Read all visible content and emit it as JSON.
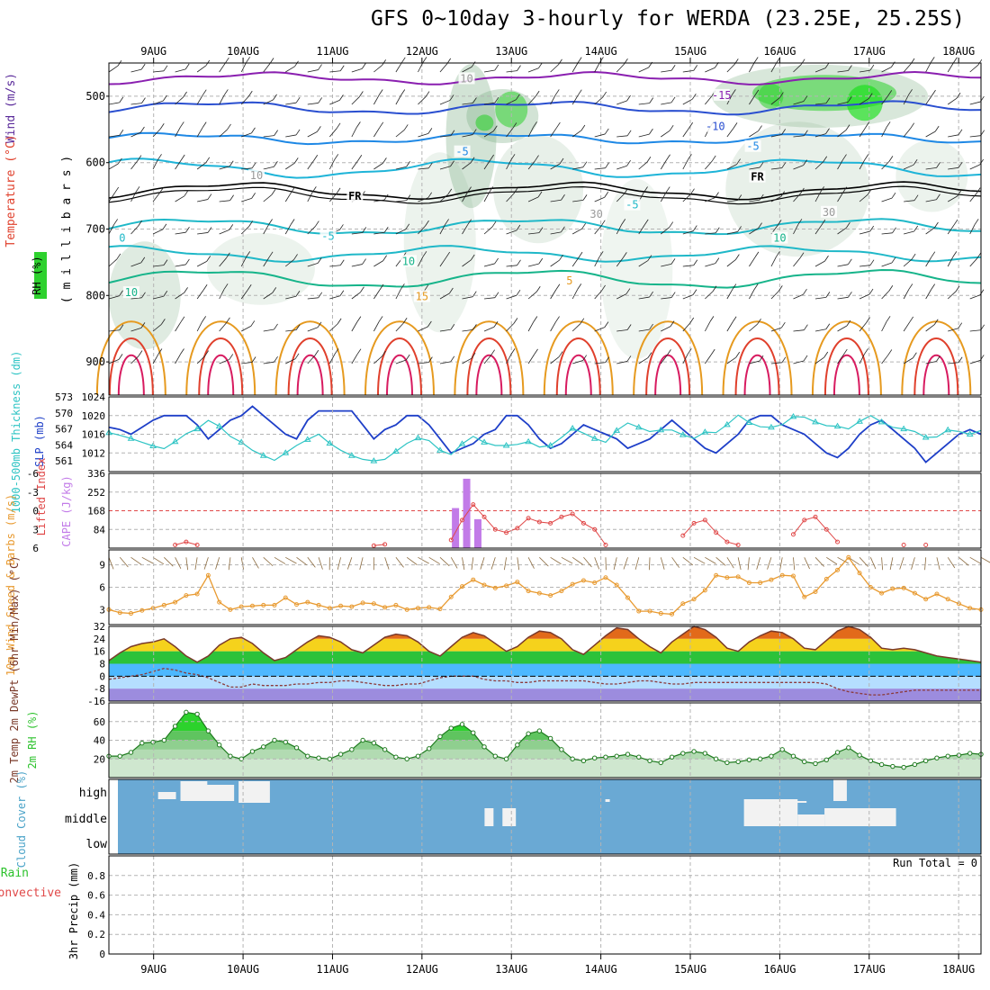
{
  "title": "GFS 0~10day 3-hourly for WERDA (23.25E, 25.25S)",
  "colors": {
    "temp_orange": "#e69a1f",
    "temp_red": "#e0402c",
    "temp_purple": "#8a1fb0",
    "wind_blue": "#2a4fd0",
    "cyan": "#1fb8c8",
    "teal": "#16b48a",
    "rh_green": "#2cd22c",
    "slp_blue": "#1e3fc8",
    "thickness_cyan": "#2ec4c4",
    "cape_purple": "#c27be8",
    "lifted_red": "#e04848",
    "wind10_orange": "#e89a30",
    "cloud_blue": "#6aa9d4",
    "grid": "#b4b4b4"
  },
  "axes": {
    "date_labels": [
      "9AUG",
      "10AUG",
      "11AUG",
      "12AUG",
      "13AUG",
      "14AUG",
      "15AUG",
      "16AUG",
      "17AUG",
      "18AUG"
    ],
    "day_start": 8.5,
    "day_end": 18.25
  },
  "panels": {
    "upper": {
      "ylabel_wind": "Wind (m/s)",
      "ylabel_temp": "Temperature (°C)",
      "ylabel_rh": "RH (%)",
      "ylabel_mb": "( m i l l i b a r s )",
      "yticks": [
        "500",
        "600",
        "700",
        "800",
        "900"
      ],
      "contour_labels": [
        {
          "text": "-15",
          "day": 15.35,
          "mb": 500,
          "color": "#8a1fb0"
        },
        {
          "text": "-10",
          "day": 15.28,
          "mb": 547,
          "color": "#2a4fd0"
        },
        {
          "text": "-5",
          "day": 12.45,
          "mb": 585,
          "color": "#1e88e5"
        },
        {
          "text": "-5",
          "day": 15.7,
          "mb": 577,
          "color": "#1e88e5"
        },
        {
          "text": "FR",
          "day": 11.25,
          "mb": 652,
          "color": "#000000"
        },
        {
          "text": "FR",
          "day": 15.75,
          "mb": 623,
          "color": "#000000"
        },
        {
          "text": "-5",
          "day": 14.35,
          "mb": 665,
          "color": "#1fb8c8"
        },
        {
          "text": "-5",
          "day": 10.95,
          "mb": 712,
          "color": "#1fb8c8"
        },
        {
          "text": "0",
          "day": 8.65,
          "mb": 715,
          "color": "#1fb8c8"
        },
        {
          "text": "10",
          "day": 16.0,
          "mb": 715,
          "color": "#16b48a"
        },
        {
          "text": "10",
          "day": 11.85,
          "mb": 750,
          "color": "#16b48a"
        },
        {
          "text": "10",
          "day": 8.75,
          "mb": 797,
          "color": "#16b48a"
        },
        {
          "text": "5",
          "day": 13.65,
          "mb": 779,
          "color": "#e69a1f"
        },
        {
          "text": "15",
          "day": 12.0,
          "mb": 803,
          "color": "#e69a1f"
        },
        {
          "text": "10",
          "day": 12.5,
          "mb": 475,
          "color": "#9a9a9a"
        },
        {
          "text": "10",
          "day": 10.15,
          "mb": 621,
          "color": "#9a9a9a"
        },
        {
          "text": "30",
          "day": 13.95,
          "mb": 679,
          "color": "#9a9a9a"
        },
        {
          "text": "30",
          "day": 16.55,
          "mb": 676,
          "color": "#9a9a9a"
        }
      ]
    },
    "slp": {
      "ylabel_slp": "SLP (mb)",
      "ylabel_thk": "1000-500mb Thickness (dm)",
      "slp_ticks": [
        "1024",
        "1020",
        "1016",
        "1012"
      ],
      "thk_ticks": [
        "573",
        "570",
        "567",
        "564",
        "561"
      ],
      "slp": [
        1017.5,
        1017,
        1016,
        1017.5,
        1019,
        1020,
        1020,
        1020,
        1018,
        1015,
        1017,
        1019,
        1020,
        1022,
        1020,
        1018,
        1016,
        1015,
        1019,
        1021,
        1021,
        1021,
        1021,
        1018,
        1015,
        1017,
        1018,
        1020,
        1020,
        1018,
        1015,
        1012,
        1013,
        1014,
        1016,
        1017,
        1020,
        1020,
        1018,
        1015,
        1013,
        1014,
        1016,
        1018,
        1017,
        1016,
        1015,
        1013,
        1014,
        1015,
        1017,
        1019,
        1017,
        1015,
        1013,
        1012,
        1014,
        1016,
        1019,
        1020,
        1020,
        1018,
        1017,
        1016,
        1014,
        1012,
        1011,
        1013,
        1016,
        1018,
        1019,
        1017,
        1015,
        1013,
        1010,
        1012,
        1014,
        1016,
        1017,
        1016
      ],
      "thk": [
        566.3,
        565.8,
        565.2,
        564.5,
        563.8,
        563.3,
        564.6,
        566.1,
        567.0,
        568.6,
        567.5,
        565.6,
        564.5,
        563.0,
        562.0,
        561.1,
        562.5,
        563.9,
        565.0,
        566.0,
        564.3,
        563.0,
        562.0,
        561.3,
        561.0,
        561.3,
        562.8,
        564.3,
        565.3,
        564.8,
        563.0,
        562.2,
        564.2,
        565.6,
        564.5,
        563.9,
        563.9,
        564.1,
        564.6,
        563.6,
        563.9,
        565.4,
        567.1,
        566.2,
        565.2,
        564.5,
        566.7,
        568.1,
        567.3,
        566.5,
        566.8,
        566.8,
        565.9,
        565.2,
        566.4,
        566.3,
        567.8,
        569.6,
        568.2,
        567.4,
        567.3,
        567.8,
        569.3,
        569.2,
        568.3,
        567.6,
        567.5,
        567.0,
        568.4,
        569.5,
        568.3,
        567.3,
        567.0,
        566.5,
        565.4,
        565.5,
        566.8,
        566.5,
        566.0,
        566.7
      ]
    },
    "cape": {
      "ylabel_li": "Lifted Index",
      "ylabel_cape": "CAPE (J/kg)",
      "li_ticks": [
        "-6",
        "-3",
        "0",
        "3",
        "6"
      ],
      "cape_ticks": [
        "336",
        "252",
        "168",
        "84"
      ],
      "cape_bars": [
        {
          "day": 12.375,
          "value": 180
        },
        {
          "day": 12.5,
          "value": 312
        },
        {
          "day": 12.625,
          "value": 130
        }
      ],
      "li": [
        null,
        null,
        null,
        null,
        null,
        null,
        5.5,
        5.0,
        5.5,
        null,
        null,
        null,
        null,
        null,
        null,
        null,
        null,
        null,
        null,
        null,
        null,
        null,
        null,
        null,
        5.6,
        5.4,
        null,
        null,
        null,
        null,
        null,
        4.7,
        1.5,
        -1.0,
        1.0,
        3.0,
        3.5,
        2.8,
        1.2,
        1.8,
        2.0,
        1.0,
        0.5,
        2.0,
        3.0,
        5.5,
        null,
        null,
        null,
        null,
        null,
        null,
        4.0,
        2.0,
        1.5,
        3.5,
        5.0,
        5.5,
        null,
        null,
        null,
        null,
        3.8,
        1.5,
        1.0,
        3.0,
        5.0,
        null,
        null,
        null,
        null,
        null,
        5.5,
        null,
        5.5,
        null,
        null,
        null,
        null,
        null
      ]
    },
    "wind10": {
      "ylabel": "10m Wind Speed & Barbs (m/s)",
      "yticks": [
        "9",
        "6",
        "3"
      ],
      "speed": [
        3.0,
        2.6,
        2.5,
        2.9,
        3.2,
        3.6,
        4.0,
        4.9,
        5.1,
        7.6,
        4.0,
        3.0,
        3.4,
        3.5,
        3.6,
        3.6,
        4.6,
        3.7,
        4.0,
        3.6,
        3.2,
        3.5,
        3.4,
        3.9,
        3.8,
        3.3,
        3.6,
        3.0,
        3.2,
        3.3,
        3.1,
        4.7,
        6.1,
        7.0,
        6.3,
        5.9,
        6.2,
        6.7,
        5.5,
        5.2,
        4.9,
        5.5,
        6.4,
        6.9,
        6.6,
        7.3,
        6.3,
        4.6,
        2.8,
        2.8,
        2.5,
        2.4,
        3.8,
        4.4,
        5.6,
        7.6,
        7.3,
        7.4,
        6.6,
        6.6,
        7.0,
        7.6,
        7.5,
        4.7,
        5.4,
        7.1,
        8.3,
        10.0,
        7.9,
        6.0,
        5.2,
        5.8,
        5.9,
        5.2,
        4.4,
        5.1,
        4.4,
        3.8,
        3.2,
        3.0
      ]
    },
    "temp2m": {
      "ylabel": "2m Temp 2m DewPt (6hr Min/Max) (°C)",
      "yticks": [
        "32",
        "24",
        "16",
        "8",
        "0",
        "-8",
        "-16"
      ],
      "temp": [
        10,
        15,
        19,
        21,
        22,
        24,
        19,
        13,
        9,
        13,
        20,
        24,
        25,
        21,
        15,
        10,
        12,
        17,
        22,
        26,
        25,
        22,
        17,
        15,
        20,
        25,
        27,
        26,
        22,
        16,
        13,
        19,
        25,
        28,
        26,
        21,
        16,
        19,
        25,
        29,
        28,
        24,
        17,
        14,
        20,
        26,
        31,
        30,
        24,
        19,
        15,
        22,
        27,
        32,
        30,
        25,
        18,
        16,
        22,
        26,
        29,
        28,
        24,
        18,
        17,
        23,
        29,
        32,
        30,
        25,
        18,
        17,
        18,
        17,
        15,
        13,
        12,
        11,
        10,
        9
      ],
      "dewpt": [
        -2,
        -1,
        0,
        1,
        3,
        5,
        4,
        2,
        1,
        -1,
        -4,
        -7,
        -7,
        -5,
        -6,
        -6,
        -6,
        -5,
        -5,
        -4,
        -4,
        -3,
        -3,
        -4,
        -5,
        -6,
        -6,
        -5,
        -5,
        -3,
        -1,
        0,
        0,
        0,
        -2,
        -3,
        -3,
        -4,
        -4,
        -3,
        -3,
        -3,
        -3,
        -3,
        -4,
        -5,
        -5,
        -4,
        -3,
        -3,
        -4,
        -5,
        -5,
        -4,
        -4,
        -4,
        -4,
        -4,
        -4,
        -4,
        -4,
        -4,
        -4,
        -4,
        -4,
        -5,
        -8,
        -10,
        -11,
        -12,
        -12,
        -11,
        -10,
        -9,
        -9,
        -9,
        -9,
        -9,
        -9,
        -9
      ]
    },
    "rh2m": {
      "ylabel": "2m RH (%)",
      "yticks": [
        "60",
        "40",
        "20"
      ],
      "rh": [
        23,
        23,
        27,
        37,
        38,
        40,
        55,
        70,
        68,
        50,
        35,
        23,
        20,
        28,
        33,
        40,
        38,
        32,
        23,
        21,
        20,
        25,
        30,
        40,
        37,
        30,
        22,
        20,
        23,
        31,
        44,
        53,
        57,
        48,
        33,
        23,
        20,
        35,
        47,
        50,
        42,
        30,
        20,
        18,
        21,
        22,
        23,
        25,
        22,
        18,
        16,
        22,
        26,
        28,
        26,
        20,
        16,
        17,
        19,
        20,
        23,
        30,
        23,
        17,
        15,
        19,
        27,
        32,
        24,
        18,
        14,
        12,
        11,
        14,
        18,
        21,
        23,
        24,
        26,
        25
      ]
    },
    "cloud": {
      "ylabel": "Cloud Cover (%)",
      "level_labels": [
        "high",
        "middle",
        "low"
      ]
    },
    "precip": {
      "ylabel": "3hr Precip (mm)",
      "legend_total": "Total / Rain",
      "legend_conv": "Convective",
      "run_total": "Run Total = 0",
      "yticks": [
        "0.8",
        "0.6",
        "0.4",
        "0.2",
        "0"
      ]
    }
  }
}
